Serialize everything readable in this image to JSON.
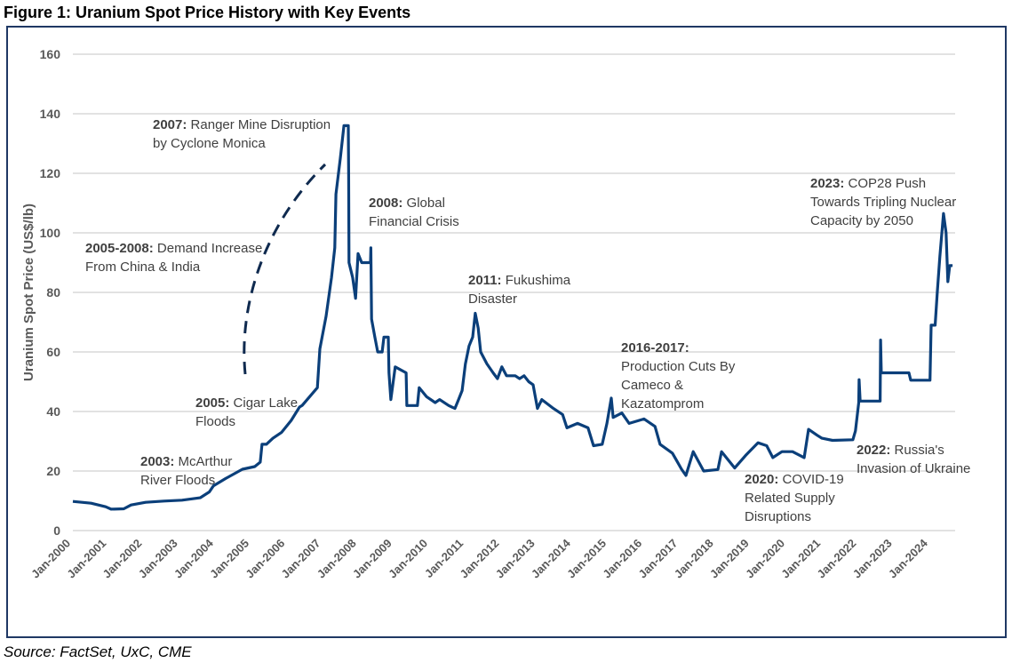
{
  "title": "Figure 1: Uranium Spot Price History with Key Events",
  "source": "Source: FactSet, UxC, CME",
  "colors": {
    "line": "#0b3f7a",
    "frame": "#1f3864",
    "grid": "#d9d9d9",
    "text": "#595959"
  },
  "chart_data": {
    "type": "line",
    "title": "Figure 1: Uranium Spot Price History with Key Events",
    "xlabel": "",
    "ylabel": "Uranium Spot Price (US$/lb)",
    "ylim": [
      0,
      160
    ],
    "yticks": [
      0,
      20,
      40,
      60,
      80,
      100,
      120,
      140,
      160
    ],
    "xlim": [
      2000,
      2024.25
    ],
    "xticks": [
      2000,
      2001,
      2002,
      2003,
      2004,
      2005,
      2006,
      2007,
      2008,
      2009,
      2010,
      2011,
      2012,
      2013,
      2014,
      2015,
      2016,
      2017,
      2018,
      2019,
      2020,
      2021,
      2022,
      2023,
      2024
    ],
    "xtick_labels": [
      "Jan-2000",
      "Jan-2001",
      "Jan-2002",
      "Jan-2003",
      "Jan-2004",
      "Jan-2005",
      "Jan-2006",
      "Jan-2007",
      "Jan-2008",
      "Jan-2009",
      "Jan-2010",
      "Jan-2011",
      "Jan-2012",
      "Jan-2013",
      "Jan-2014",
      "Jan-2015",
      "Jan-2016",
      "Jan-2017",
      "Jan-2018",
      "Jan-2019",
      "Jan-2020",
      "Jan-2021",
      "Jan-2022",
      "Jan-2023",
      "Jan-2024"
    ],
    "grid": true,
    "legend": "none",
    "series": [
      {
        "x": [
          2000.0,
          2000.5,
          2000.9,
          2001.05,
          2001.4,
          2001.6,
          2002.0,
          2002.5,
          2003.0,
          2003.5,
          2003.75,
          2003.86,
          2004.2,
          2004.66,
          2005.0,
          2005.15,
          2005.2,
          2005.32,
          2005.5,
          2005.74,
          2006.0,
          2006.23,
          2006.3,
          2006.72,
          2006.79,
          2006.96,
          2007.11,
          2007.2,
          2007.23,
          2007.35,
          2007.45,
          2007.57,
          2007.58,
          2007.59,
          2007.69,
          2007.77,
          2007.84,
          2007.94,
          2008.18,
          2008.19,
          2008.21,
          2008.3,
          2008.38,
          2008.5,
          2008.55,
          2008.67,
          2008.69,
          2008.74,
          2008.86,
          2009.16,
          2009.18,
          2009.47,
          2009.52,
          2009.72,
          2009.96,
          2010.08,
          2010.33,
          2010.5,
          2010.6,
          2010.7,
          2010.79,
          2010.89,
          2010.99,
          2011.06,
          2011.14,
          2011.21,
          2011.38,
          2011.55,
          2011.67,
          2011.79,
          2011.92,
          2012.16,
          2012.28,
          2012.4,
          2012.53,
          2012.65,
          2012.77,
          2012.89,
          2013.21,
          2013.46,
          2013.58,
          2013.87,
          2014.16,
          2014.31,
          2014.55,
          2014.68,
          2014.8,
          2014.85,
          2015.09,
          2015.29,
          2015.7,
          2016.0,
          2016.14,
          2016.48,
          2016.73,
          2016.85,
          2017.05,
          2017.34,
          2017.73,
          2017.83,
          2018.19,
          2018.51,
          2018.83,
          2019.07,
          2019.24,
          2019.49,
          2019.78,
          2020.1,
          2020.22,
          2020.46,
          2020.59,
          2020.88,
          2021.44,
          2021.51,
          2021.6,
          2021.61,
          2021.64,
          2022.19,
          2022.2,
          2022.22,
          2022.98,
          2023.03,
          2023.56,
          2023.59,
          2023.7,
          2023.76,
          2023.83,
          2023.93,
          2024.0,
          2024.05,
          2024.1,
          2024.18
        ],
        "values": [
          9.8,
          9.2,
          8.0,
          7.2,
          7.3,
          8.6,
          9.5,
          9.9,
          10.2,
          11.0,
          13.0,
          15.0,
          17.5,
          20.6,
          21.5,
          23.0,
          29.0,
          29.0,
          31.0,
          33.0,
          37.0,
          41.5,
          42.0,
          48.0,
          61.0,
          72.0,
          85.0,
          95.0,
          113.0,
          125.0,
          136.0,
          136.0,
          120.0,
          90.0,
          85.0,
          78.0,
          93.0,
          90.0,
          90.0,
          95.0,
          71.0,
          65.0,
          60.0,
          60.0,
          65.0,
          65.0,
          53.0,
          44.0,
          55.0,
          53.0,
          42.0,
          42.0,
          48.0,
          45.0,
          43.0,
          44.0,
          42.0,
          41.0,
          44.0,
          47.0,
          56.0,
          62.0,
          65.0,
          73.0,
          68.0,
          60.0,
          56.0,
          53.0,
          51.0,
          55.0,
          52.0,
          52.0,
          51.0,
          52.0,
          50.0,
          49.0,
          41.0,
          44.0,
          41.0,
          39.0,
          34.5,
          36.0,
          34.5,
          28.5,
          29.0,
          36.0,
          44.5,
          38.0,
          39.5,
          36.0,
          37.5,
          35.0,
          29.0,
          26.0,
          20.6,
          18.5,
          26.5,
          20.0,
          20.5,
          26.5,
          21.0,
          25.5,
          29.5,
          28.5,
          24.5,
          26.5,
          26.5,
          24.5,
          34.0,
          32.0,
          31.0,
          30.3,
          30.5,
          33.5,
          43.0,
          50.7,
          43.5,
          43.5,
          64.0,
          53.0,
          53.0,
          50.5,
          50.5,
          69.0,
          69.0,
          80.0,
          92.0,
          106.5,
          100.0,
          83.6,
          89.0,
          89.0
        ]
      }
    ],
    "annotations": [
      {
        "bold": "2007:",
        "lines": [
          "Ranger Mine Disruption",
          "by Cyclone Monica"
        ]
      },
      {
        "bold": "2008:",
        "lines": [
          "Global",
          "Financial Crisis"
        ]
      },
      {
        "bold": "2005-2008:",
        "lines": [
          "Demand Increase",
          "From China & India"
        ]
      },
      {
        "bold": "2011:",
        "lines": [
          "Fukushima",
          "Disaster"
        ]
      },
      {
        "bold": "2016-2017:",
        "lines": [
          "",
          "Production Cuts By",
          "Cameco &",
          "Kazatomprom"
        ]
      },
      {
        "bold": "2005:",
        "lines": [
          "Cigar Lake",
          "Floods"
        ]
      },
      {
        "bold": "2003:",
        "lines": [
          "McArthur",
          "River Floods"
        ]
      },
      {
        "bold": "2020:",
        "lines": [
          "COVID-19",
          "Related Supply",
          "Disruptions"
        ]
      },
      {
        "bold": "2022:",
        "lines": [
          "Russia's",
          "Invasion of Ukraine"
        ]
      },
      {
        "bold": "2023:",
        "lines": [
          "COP28 Push",
          "Towards Tripling Nuclear",
          "Capacity by 2050"
        ]
      }
    ]
  }
}
